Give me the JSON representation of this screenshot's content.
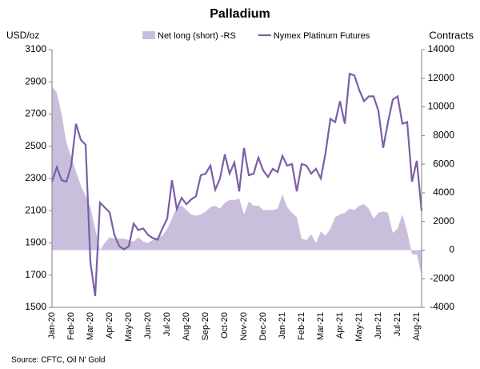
{
  "chart_data": {
    "type": "line-area",
    "title": "Palladium",
    "y_label": "USD/oz",
    "y2_label": "Contracts",
    "source": "Source: CFTC, Oil N' Gold",
    "legend": "top",
    "categories": [
      "Jan-20",
      null,
      null,
      null,
      "Feb-20",
      null,
      null,
      null,
      "Mar-20",
      null,
      null,
      null,
      "Apr-20",
      null,
      null,
      null,
      "May-20",
      null,
      null,
      null,
      "Jun-20",
      null,
      null,
      null,
      "Jul-20",
      null,
      null,
      null,
      "Aug-20",
      null,
      null,
      null,
      "Sep-20",
      null,
      null,
      null,
      "Oct-20",
      null,
      null,
      null,
      "Nov-20",
      null,
      null,
      null,
      "Dec-20",
      null,
      null,
      null,
      "Jan-21",
      null,
      null,
      null,
      "Feb-21",
      null,
      null,
      null,
      "Mar-21",
      null,
      null,
      null,
      "Apr-21",
      null,
      null,
      null,
      "May-21",
      null,
      null,
      null,
      "Jun-21",
      null,
      null,
      null,
      "Jul-21",
      null,
      null,
      null,
      "Aug-21",
      null
    ],
    "series": [
      {
        "name": "Net long (short) -RS",
        "kind": "area",
        "axis": "y2",
        "color": "#c9bfdc",
        "values": [
          11400,
          11000,
          9500,
          7500,
          6500,
          5500,
          4500,
          3800,
          3000,
          1500,
          0,
          500,
          900,
          800,
          800,
          800,
          700,
          600,
          900,
          600,
          500,
          700,
          900,
          1000,
          1500,
          2200,
          3000,
          3100,
          2800,
          2500,
          2400,
          2500,
          2700,
          3000,
          3100,
          2900,
          3300,
          3500,
          3500,
          3600,
          2500,
          3400,
          3100,
          3100,
          2800,
          2800,
          2800,
          2900,
          3900,
          3000,
          2600,
          2300,
          800,
          700,
          1100,
          500,
          1300,
          1000,
          1500,
          2300,
          2500,
          2600,
          2900,
          2800,
          3100,
          3200,
          2900,
          2200,
          2600,
          2700,
          2600,
          1200,
          1500,
          2500,
          1300,
          -300,
          -300,
          -1800
        ]
      },
      {
        "name": "Nymex Platinum Futures",
        "kind": "line",
        "axis": "y",
        "color": "#7b5ea7",
        "values": [
          2280,
          2370,
          2290,
          2280,
          2380,
          2640,
          2540,
          2510,
          1780,
          1570,
          2150,
          2120,
          2090,
          1950,
          1880,
          1860,
          1880,
          2020,
          1980,
          1990,
          1950,
          1930,
          1920,
          1990,
          2050,
          2290,
          2110,
          2180,
          2140,
          2170,
          2190,
          2320,
          2330,
          2380,
          2230,
          2300,
          2450,
          2330,
          2400,
          2220,
          2490,
          2320,
          2330,
          2430,
          2350,
          2310,
          2360,
          2340,
          2440,
          2380,
          2390,
          2220,
          2390,
          2380,
          2330,
          2360,
          2300,
          2460,
          2670,
          2650,
          2780,
          2640,
          2950,
          2940,
          2850,
          2780,
          2810,
          2810,
          2720,
          2490,
          2650,
          2790,
          2810,
          2640,
          2650,
          2280,
          2410,
          2100
        ]
      }
    ],
    "ylim": [
      1500,
      3100
    ],
    "yticks": [
      1500,
      1700,
      1900,
      2100,
      2300,
      2500,
      2700,
      2900,
      3100
    ],
    "y2lim": [
      -4000,
      14000
    ],
    "y2ticks": [
      -4000,
      -2000,
      0,
      2000,
      4000,
      6000,
      8000,
      10000,
      12000,
      14000
    ]
  }
}
